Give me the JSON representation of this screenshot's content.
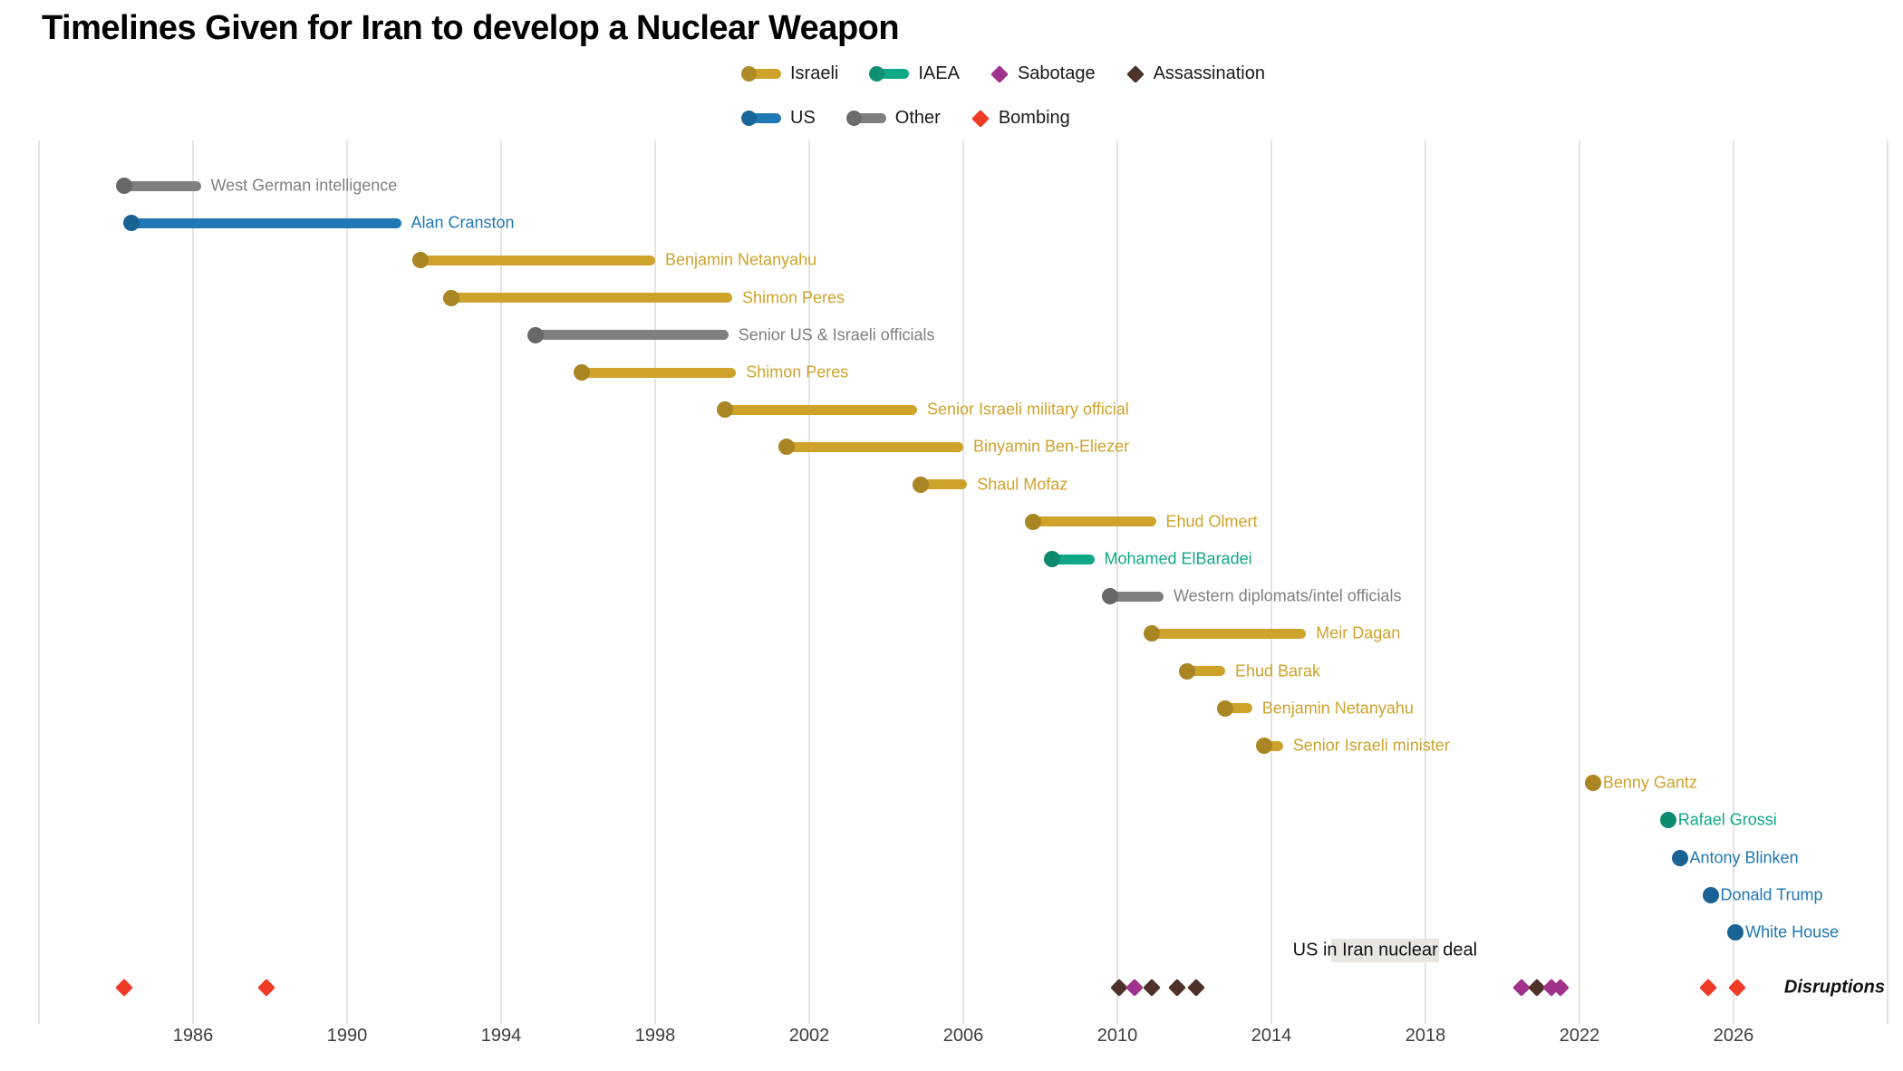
{
  "title": "Timelines Given for Iran to develop a Nuclear Weapon",
  "colors": {
    "israeli": "#CEA32B",
    "us": "#1F77B4",
    "iaea": "#0FA886",
    "other": "#7F7F7F",
    "sabotage": "#A0328C",
    "assassination": "#4E3128",
    "bombing": "#F03B26",
    "grid": "#E4E4E4",
    "deal_band": "#E9E6E2",
    "axis_text": "#3D3D3D"
  },
  "legend": {
    "rows": [
      {
        "items": [
          {
            "label": "Israeli",
            "swatch": "bar",
            "color_key": "israeli"
          },
          {
            "label": "IAEA",
            "swatch": "bar",
            "color_key": "iaea"
          },
          {
            "label": "Sabotage",
            "swatch": "diamond",
            "color_key": "sabotage"
          },
          {
            "label": "Assassination",
            "swatch": "diamond",
            "color_key": "assassination"
          }
        ]
      },
      {
        "items": [
          {
            "label": "US",
            "swatch": "bar",
            "color_key": "us"
          },
          {
            "label": "Other",
            "swatch": "bar",
            "color_key": "other"
          },
          {
            "label": "Bombing",
            "swatch": "diamond",
            "color_key": "bombing"
          }
        ]
      }
    ]
  },
  "chart_data": {
    "type": "timeline",
    "title": "Timelines Given for Iran to develop a Nuclear Weapon",
    "x_axis": {
      "ticks": [
        1986,
        1990,
        1994,
        1998,
        2002,
        2006,
        2010,
        2014,
        2018,
        2022,
        2026
      ],
      "gridline_years": [
        1982,
        1986,
        1990,
        1994,
        1998,
        2002,
        2006,
        2010,
        2014,
        2018,
        2022,
        2026,
        2030
      ],
      "range": [
        1982,
        2030
      ],
      "grid": true
    },
    "timelines": [
      {
        "label": "West German intelligence",
        "category": "other",
        "start": 1984.2,
        "end": 1986.2
      },
      {
        "label": "Alan Cranston",
        "category": "us",
        "start": 1984.4,
        "end": 1991.4
      },
      {
        "label": "Benjamin Netanyahu",
        "category": "israeli",
        "start": 1991.9,
        "end": 1998.0
      },
      {
        "label": "Shimon Peres",
        "category": "israeli",
        "start": 1992.7,
        "end": 2000.0
      },
      {
        "label": "Senior US & Israeli officials",
        "category": "other",
        "start": 1994.9,
        "end": 1999.9
      },
      {
        "label": "Shimon Peres",
        "category": "israeli",
        "start": 1996.1,
        "end": 2000.1
      },
      {
        "label": "Senior Israeli military official",
        "category": "israeli",
        "start": 1999.8,
        "end": 2004.8
      },
      {
        "label": "Binyamin Ben-Eliezer",
        "category": "israeli",
        "start": 2001.4,
        "end": 2006.0
      },
      {
        "label": "Shaul Mofaz",
        "category": "israeli",
        "start": 2004.9,
        "end": 2006.1
      },
      {
        "label": "Ehud Olmert",
        "category": "israeli",
        "start": 2007.8,
        "end": 2011.0
      },
      {
        "label": "Mohamed ElBaradei",
        "category": "iaea",
        "start": 2008.3,
        "end": 2009.4
      },
      {
        "label": "Western diplomats/intel officials",
        "category": "other",
        "start": 2009.8,
        "end": 2011.2
      },
      {
        "label": "Meir Dagan",
        "category": "israeli",
        "start": 2010.9,
        "end": 2014.9
      },
      {
        "label": "Ehud Barak",
        "category": "israeli",
        "start": 2011.8,
        "end": 2012.8
      },
      {
        "label": "Benjamin Netanyahu",
        "category": "israeli",
        "start": 2012.8,
        "end": 2013.5
      },
      {
        "label": "Senior Israeli minister",
        "category": "israeli",
        "start": 2013.8,
        "end": 2014.3
      },
      {
        "label": "Benny Gantz",
        "category": "israeli",
        "start": 2022.35,
        "end": null
      },
      {
        "label": "Rafael Grossi",
        "category": "iaea",
        "start": 2024.3,
        "end": null
      },
      {
        "label": "Antony Blinken",
        "category": "us",
        "start": 2024.6,
        "end": null
      },
      {
        "label": "Donald Trump",
        "category": "us",
        "start": 2025.4,
        "end": null
      },
      {
        "label": "White House",
        "category": "us",
        "start": 2026.05,
        "end": null
      }
    ],
    "deal_band": {
      "label": "US in Iran nuclear deal",
      "start": 2015.55,
      "end": 2018.35
    },
    "disruptions": {
      "label": "Disruptions",
      "events": [
        {
          "year": 1984.2,
          "type": "bombing"
        },
        {
          "year": 1987.9,
          "type": "bombing"
        },
        {
          "year": 2010.05,
          "type": "assassination"
        },
        {
          "year": 2010.45,
          "type": "sabotage"
        },
        {
          "year": 2010.9,
          "type": "assassination"
        },
        {
          "year": 2011.55,
          "type": "assassination"
        },
        {
          "year": 2012.05,
          "type": "assassination"
        },
        {
          "year": 2020.5,
          "type": "sabotage"
        },
        {
          "year": 2020.9,
          "type": "assassination"
        },
        {
          "year": 2021.27,
          "type": "sabotage"
        },
        {
          "year": 2021.5,
          "type": "sabotage"
        },
        {
          "year": 2025.35,
          "type": "bombing"
        },
        {
          "year": 2026.1,
          "type": "bombing"
        }
      ]
    }
  }
}
